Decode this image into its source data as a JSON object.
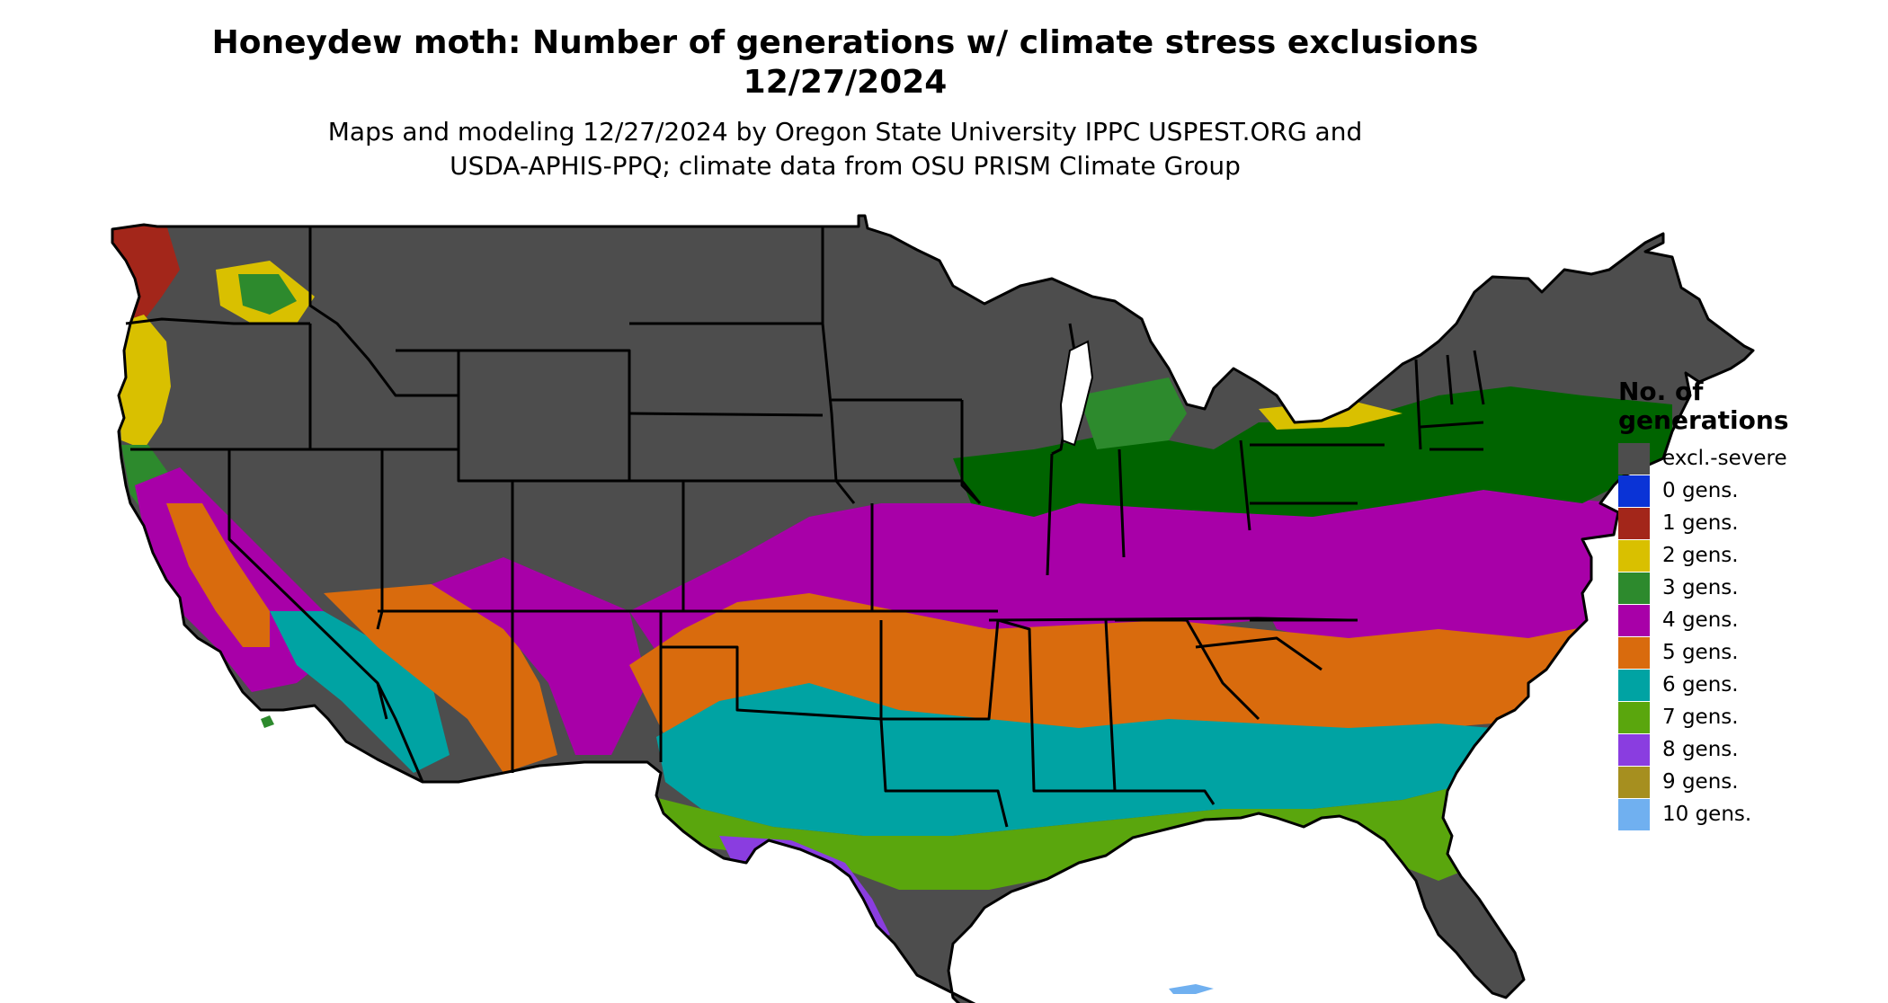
{
  "header": {
    "title_line1": "Honeydew moth: Number of generations w/ climate stress exclusions",
    "title_line2": "12/27/2024",
    "subtitle_line1": "Maps and modeling 12/27/2024 by Oregon State University IPPC USPEST.ORG and",
    "subtitle_line2": "USDA-APHIS-PPQ; climate data from OSU PRISM Climate Group"
  },
  "legend": {
    "title_line1": "No. of",
    "title_line2": "generations",
    "items": [
      {
        "label": "excl.-severe",
        "color": "#4d4d4d"
      },
      {
        "label": "0 gens.",
        "color": "#0a33d6"
      },
      {
        "label": "1 gens.",
        "color": "#a3261a"
      },
      {
        "label": "2 gens.",
        "color": "#d9c000"
      },
      {
        "label": "3 gens.",
        "color": "#2d8a2d"
      },
      {
        "label": "4 gens.",
        "color": "#a800a8"
      },
      {
        "label": "5 gens.",
        "color": "#d96b0d"
      },
      {
        "label": "6 gens.",
        "color": "#00a3a3"
      },
      {
        "label": "7 gens.",
        "color": "#5aa60d"
      },
      {
        "label": "8 gens.",
        "color": "#8a3de0"
      },
      {
        "label": "9 gens.",
        "color": "#a68f1f"
      },
      {
        "label": "10 gens.",
        "color": "#70b0f0"
      }
    ]
  }
}
